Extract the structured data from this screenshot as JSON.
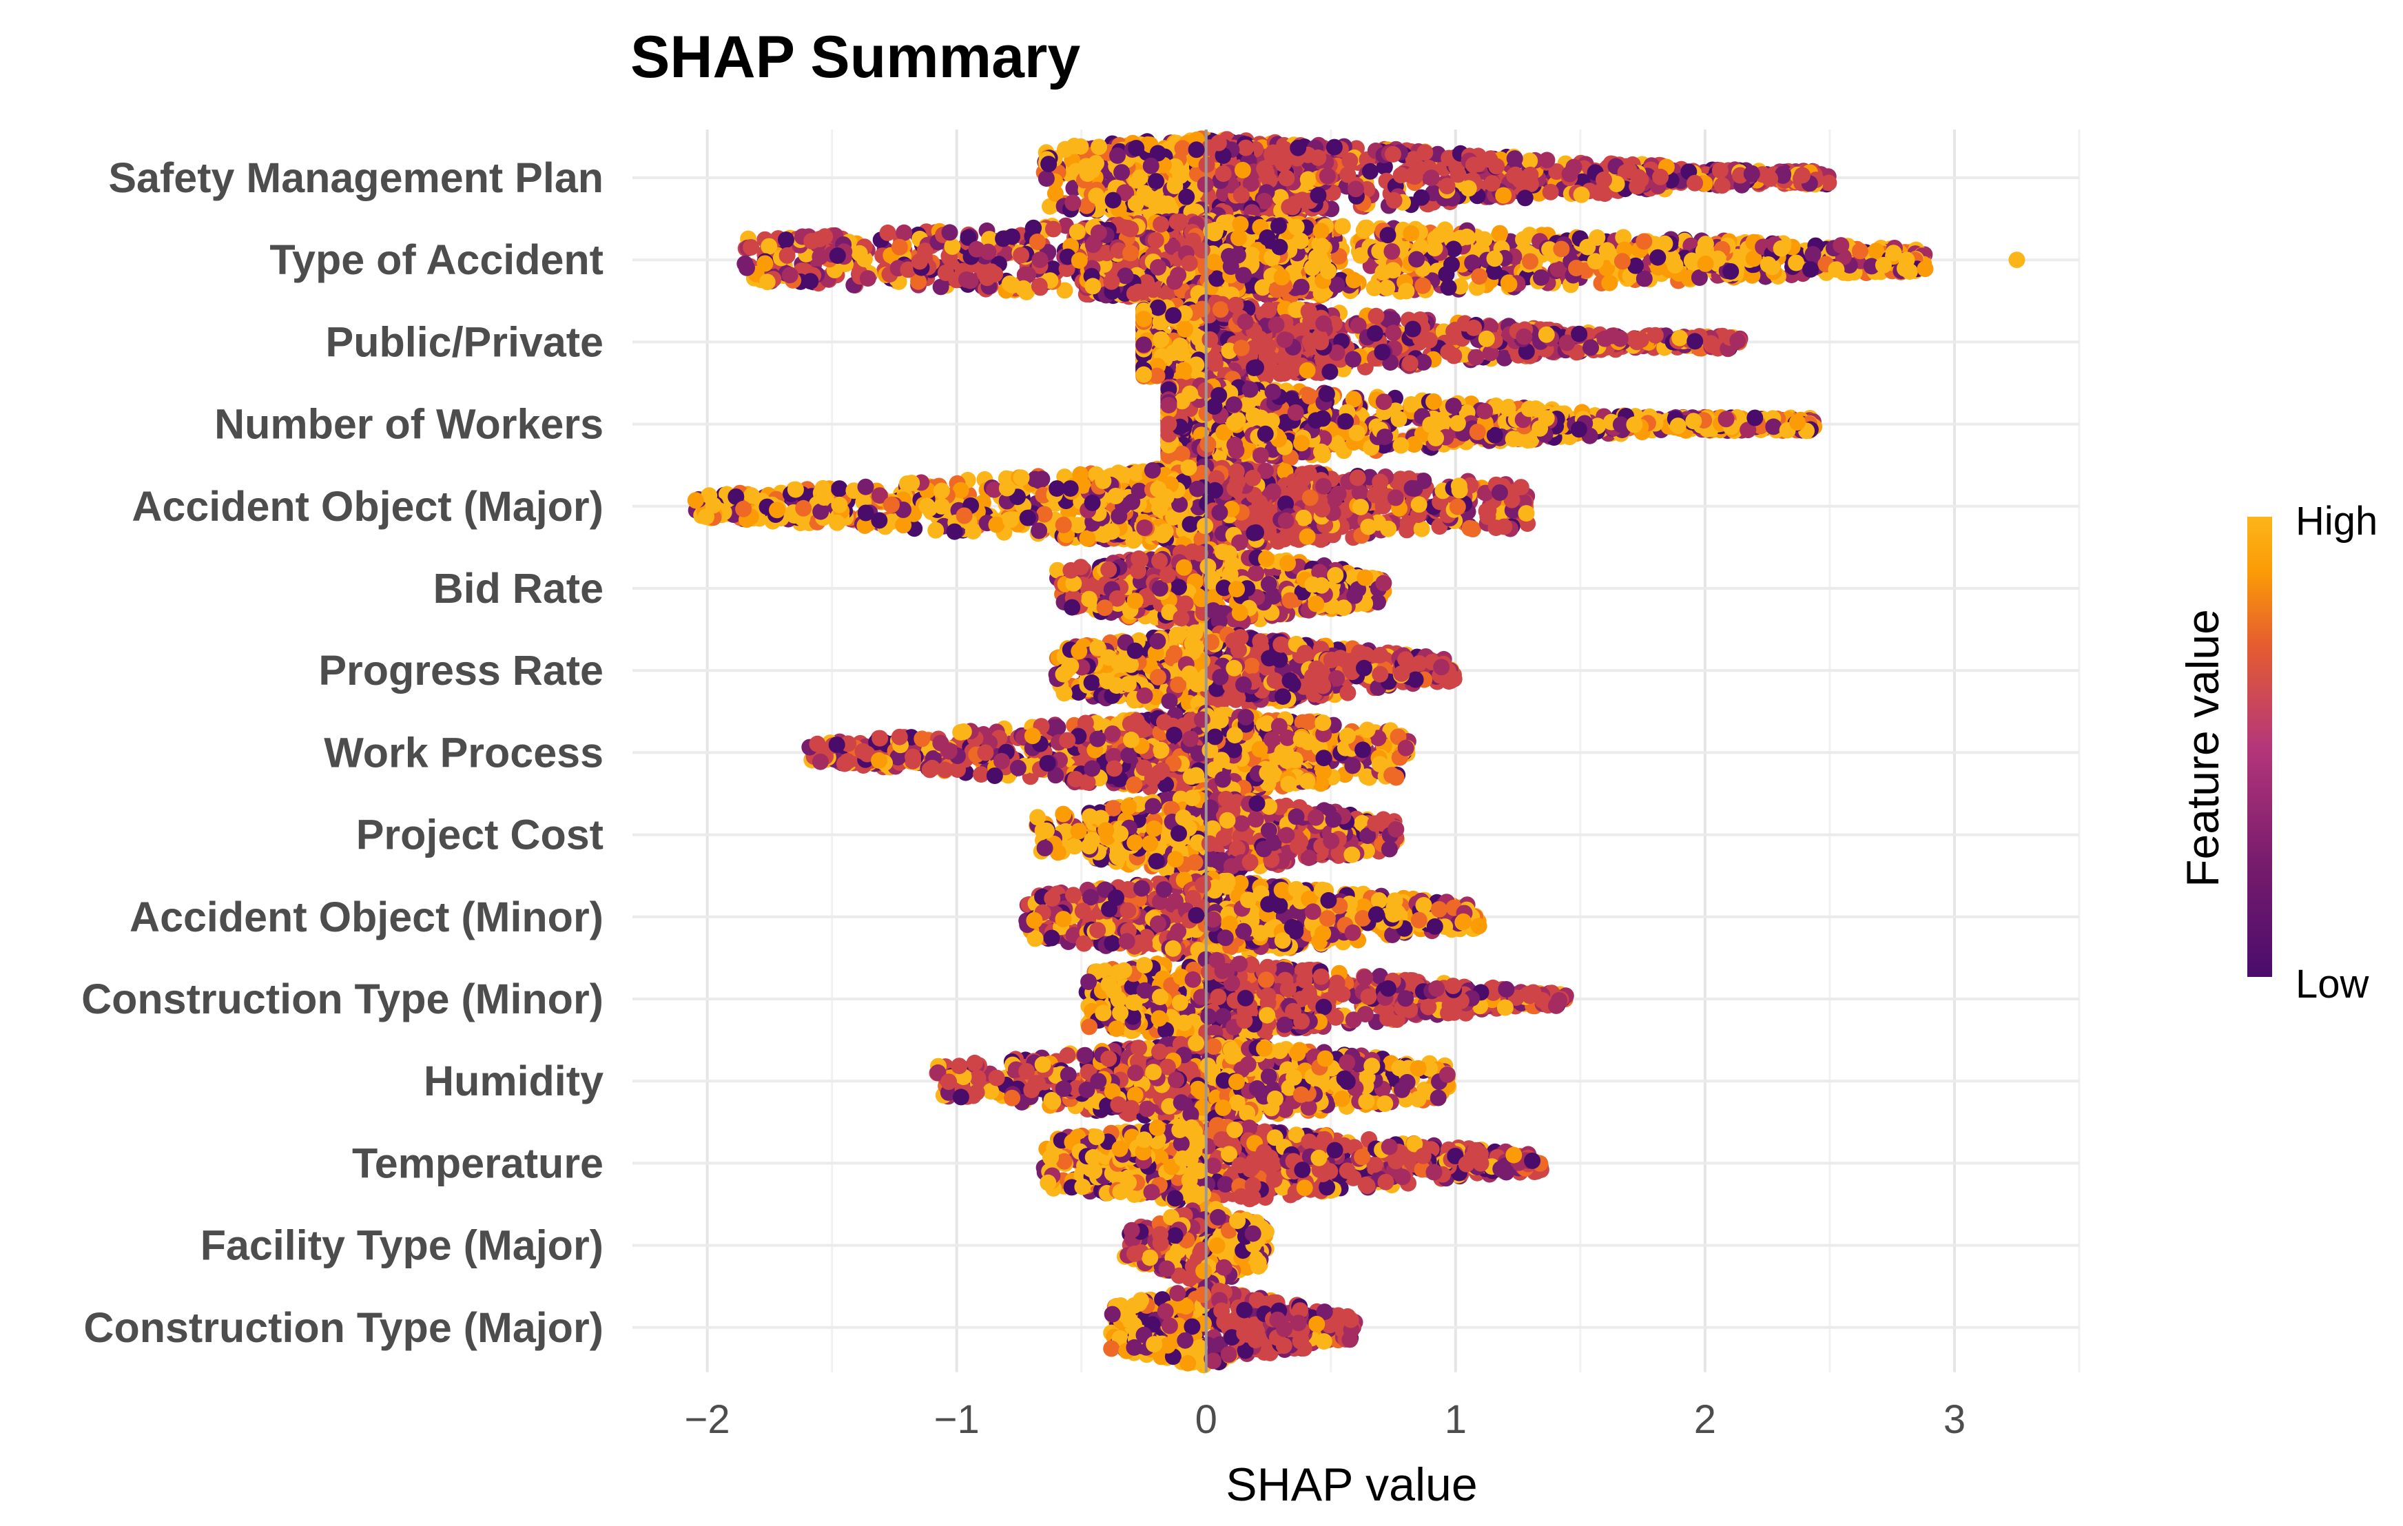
{
  "chart_data": {
    "type": "scatter",
    "subtype": "beeswarm",
    "title": "SHAP Summary",
    "xlabel": "SHAP value",
    "ylabel": "",
    "xlim": [
      -2.3,
      3.5
    ],
    "x_ticks": [
      -2,
      -1,
      0,
      1,
      2,
      3
    ],
    "x_tick_labels": [
      "−2",
      "−1",
      "0",
      "1",
      "2",
      "3"
    ],
    "grid": true,
    "zero_line": 0,
    "legend": {
      "title": "Feature value",
      "high_label": "High",
      "low_label": "Low",
      "placement": "right",
      "colors": [
        "#4a0c6b",
        "#781c6d",
        "#a52c60",
        "#cf4446",
        "#ed6925",
        "#fb9b06",
        "#f7c93a",
        "#fcb519"
      ]
    },
    "features": [
      {
        "name": "Safety Management Plan",
        "min": -0.65,
        "max": 2.5,
        "outliers": []
      },
      {
        "name": "Type of Accident",
        "min": -1.85,
        "max": 2.9,
        "outliers": [
          3.25
        ]
      },
      {
        "name": "Public/Private",
        "min": -0.25,
        "max": 2.15,
        "outliers": []
      },
      {
        "name": "Number of Workers",
        "min": -0.15,
        "max": 2.45,
        "outliers": []
      },
      {
        "name": "Accident Object (Major)",
        "min": -2.05,
        "max": 1.3,
        "outliers": []
      },
      {
        "name": "Bid Rate",
        "min": -0.6,
        "max": 0.72,
        "outliers": []
      },
      {
        "name": "Progress Rate",
        "min": -0.6,
        "max": 1.0,
        "outliers": []
      },
      {
        "name": "Work Process",
        "min": -1.6,
        "max": 0.82,
        "outliers": []
      },
      {
        "name": "Project Cost",
        "min": -0.68,
        "max": 0.77,
        "outliers": []
      },
      {
        "name": "Accident Object (Minor)",
        "min": -0.72,
        "max": 1.1,
        "outliers": []
      },
      {
        "name": "Construction Type (Minor)",
        "min": -0.48,
        "max": 1.45,
        "outliers": []
      },
      {
        "name": "Humidity",
        "min": -1.08,
        "max": 0.98,
        "outliers": []
      },
      {
        "name": "Temperature",
        "min": -0.65,
        "max": 1.35,
        "outliers": []
      },
      {
        "name": "Facility Type (Major)",
        "min": -0.33,
        "max": 0.25,
        "outliers": []
      },
      {
        "name": "Construction Type (Major)",
        "min": -0.38,
        "max": 0.6,
        "outliers": []
      }
    ]
  }
}
